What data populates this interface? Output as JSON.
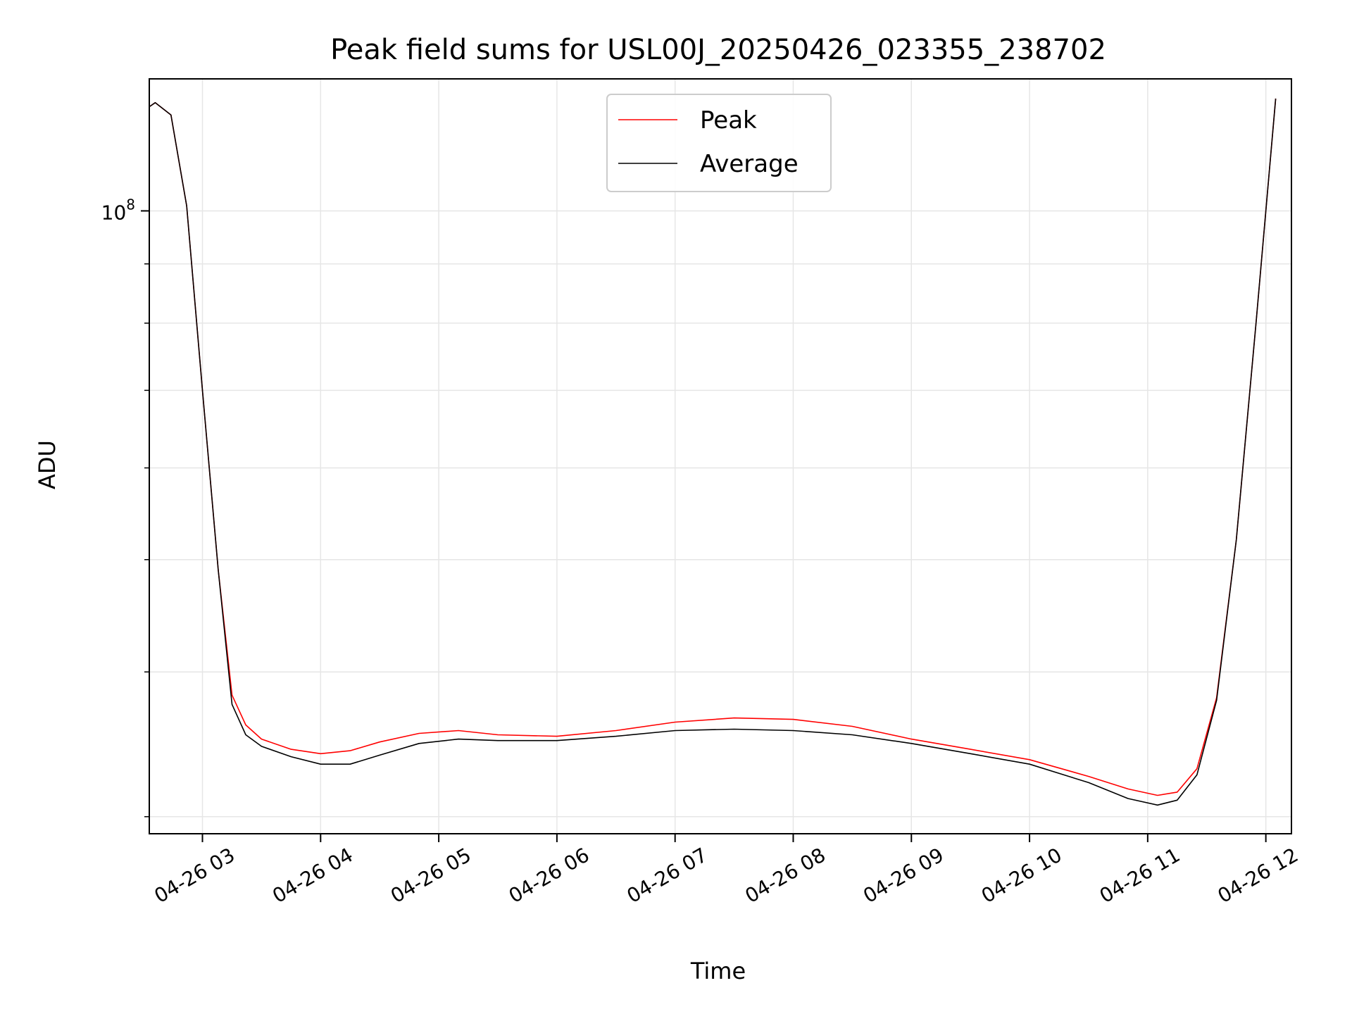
{
  "chart_data": {
    "type": "line",
    "title": "Peak field sums for USL00J_20250426_023355_238702",
    "xlabel": "Time",
    "ylabel": "ADU",
    "y_scale": "log",
    "ylim": [
      29000000,
      130000000
    ],
    "xlim": [
      "2025-04-26 02:33",
      "2025-04-26 12:13"
    ],
    "x_ticks": [
      "2025-04-26 03:00",
      "2025-04-26 04:00",
      "2025-04-26 05:00",
      "2025-04-26 06:00",
      "2025-04-26 07:00",
      "2025-04-26 08:00",
      "2025-04-26 09:00",
      "2025-04-26 10:00",
      "2025-04-26 11:00",
      "2025-04-26 12:00"
    ],
    "x_tick_labels": [
      "04-26 03",
      "04-26 04",
      "04-26 05",
      "04-26 06",
      "04-26 07",
      "04-26 08",
      "04-26 09",
      "04-26 10",
      "04-26 11",
      "04-26 12"
    ],
    "y_major_ticks": [
      100000000
    ],
    "y_major_tick_label_base": "10",
    "y_major_tick_label_exp": "8",
    "y_minor_ticks": [
      30000000,
      40000000,
      50000000,
      60000000,
      70000000,
      80000000,
      90000000
    ],
    "grid": true,
    "legend_position": "top-center",
    "series": [
      {
        "name": "Peak",
        "color": "#ff0000",
        "x": [
          "2025-04-26 02:33",
          "2025-04-26 02:36",
          "2025-04-26 02:44",
          "2025-04-26 02:52",
          "2025-04-26 03:00",
          "2025-04-26 03:08",
          "2025-04-26 03:15",
          "2025-04-26 03:22",
          "2025-04-26 03:30",
          "2025-04-26 03:45",
          "2025-04-26 04:00",
          "2025-04-26 04:15",
          "2025-04-26 04:30",
          "2025-04-26 04:50",
          "2025-04-26 05:10",
          "2025-04-26 05:30",
          "2025-04-26 06:00",
          "2025-04-26 06:30",
          "2025-04-26 07:00",
          "2025-04-26 07:30",
          "2025-04-26 08:00",
          "2025-04-26 08:30",
          "2025-04-26 09:00",
          "2025-04-26 09:30",
          "2025-04-26 10:00",
          "2025-04-26 10:30",
          "2025-04-26 10:50",
          "2025-04-26 11:05",
          "2025-04-26 11:15",
          "2025-04-26 11:25",
          "2025-04-26 11:35",
          "2025-04-26 11:45",
          "2025-04-26 11:55",
          "2025-04-26 12:05"
        ],
        "y": [
          123000000,
          124000000,
          121000000,
          101000000,
          70000000,
          49000000,
          38200000,
          36000000,
          35000000,
          34300000,
          34000000,
          34200000,
          34800000,
          35400000,
          35600000,
          35300000,
          35200000,
          35600000,
          36200000,
          36500000,
          36400000,
          35900000,
          35000000,
          34300000,
          33600000,
          32500000,
          31700000,
          31300000,
          31500000,
          33000000,
          38000000,
          52000000,
          80000000,
          125000000
        ]
      },
      {
        "name": "Average",
        "color": "#000000",
        "x": [
          "2025-04-26 02:33",
          "2025-04-26 02:36",
          "2025-04-26 02:44",
          "2025-04-26 02:52",
          "2025-04-26 03:00",
          "2025-04-26 03:08",
          "2025-04-26 03:15",
          "2025-04-26 03:22",
          "2025-04-26 03:30",
          "2025-04-26 03:45",
          "2025-04-26 04:00",
          "2025-04-26 04:15",
          "2025-04-26 04:30",
          "2025-04-26 04:50",
          "2025-04-26 05:10",
          "2025-04-26 05:30",
          "2025-04-26 06:00",
          "2025-04-26 06:30",
          "2025-04-26 07:00",
          "2025-04-26 07:30",
          "2025-04-26 08:00",
          "2025-04-26 08:30",
          "2025-04-26 09:00",
          "2025-04-26 09:30",
          "2025-04-26 10:00",
          "2025-04-26 10:30",
          "2025-04-26 10:50",
          "2025-04-26 11:05",
          "2025-04-26 11:15",
          "2025-04-26 11:25",
          "2025-04-26 11:35",
          "2025-04-26 11:45",
          "2025-04-26 11:55",
          "2025-04-26 12:05"
        ],
        "y": [
          123000000,
          124000000,
          121000000,
          101000000,
          70000000,
          49000000,
          37500000,
          35300000,
          34500000,
          33800000,
          33300000,
          33300000,
          33900000,
          34700000,
          35000000,
          34900000,
          34900000,
          35200000,
          35600000,
          35700000,
          35600000,
          35300000,
          34700000,
          34000000,
          33300000,
          32100000,
          31100000,
          30700000,
          31000000,
          32600000,
          37800000,
          52000000,
          80000000,
          125000000
        ]
      }
    ]
  }
}
